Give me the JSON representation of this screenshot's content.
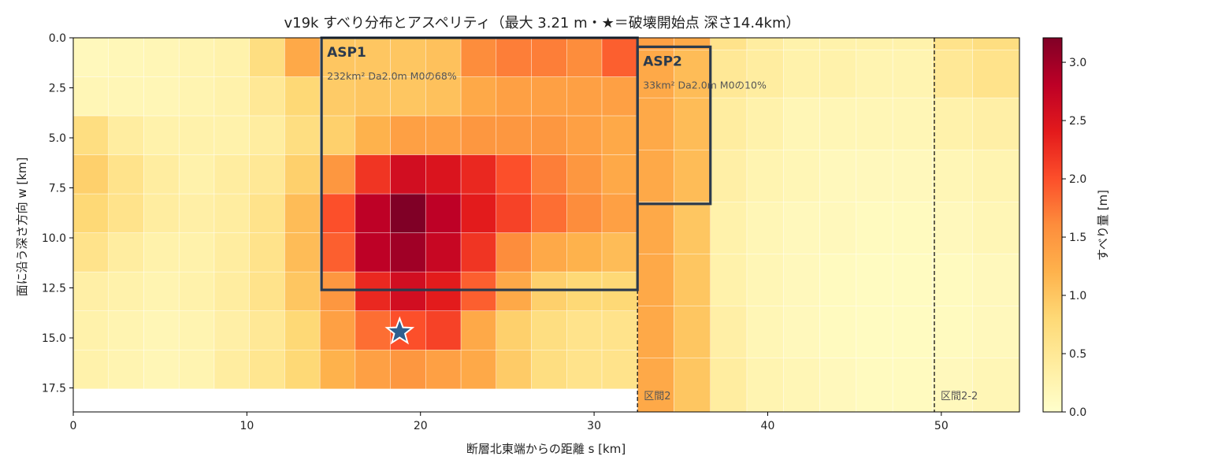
{
  "chart_data": {
    "type": "heatmap",
    "title": "v19k すべり分布とアスペリティ（最大 3.21 m・★＝破壊開始点 深さ14.4km）",
    "xlabel": "断層北東端からの距離 s [km]",
    "ylabel": "面に沿う深さ方向 w [km]",
    "colorbar_label": "すべり量 [m]",
    "xlim": [
      0,
      54.5
    ],
    "ylim": [
      18.7,
      0
    ],
    "xticks": [
      0,
      10,
      20,
      30,
      40,
      50
    ],
    "xtick_labels": [
      "0",
      "10",
      "20",
      "30",
      "40",
      "50"
    ],
    "yticks": [
      0,
      2.5,
      5,
      7.5,
      10,
      12.5,
      15,
      17.5
    ],
    "ytick_labels": [
      "0.0",
      "2.5",
      "5.0",
      "7.5",
      "10.0",
      "12.5",
      "15.0",
      "17.5"
    ],
    "cbar_range": [
      0,
      3.21
    ],
    "cbar_ticks": [
      0,
      0.5,
      1,
      1.5,
      2,
      2.5,
      3
    ],
    "cbar_tick_labels": [
      "0.0",
      "0.5",
      "1.0",
      "1.5",
      "2.0",
      "2.5",
      "3.0"
    ],
    "colormap": "YlOrRd",
    "region1": {
      "x_edges": [
        0,
        2.03,
        4.06,
        6.09,
        8.12,
        10.15,
        12.18,
        14.21,
        16.24,
        18.27,
        20.3,
        22.33,
        24.36,
        26.39,
        28.42,
        30.45,
        32.5
      ],
      "y_edges": [
        0,
        1.95,
        3.9,
        5.85,
        7.8,
        9.75,
        11.7,
        13.65,
        15.6,
        17.55
      ],
      "values": [
        [
          0.15,
          0.18,
          0.2,
          0.25,
          0.3,
          0.7,
          1.3,
          1.0,
          1.0,
          1.0,
          1.05,
          1.6,
          1.7,
          1.7,
          1.6,
          1.9
        ],
        [
          0.2,
          0.2,
          0.2,
          0.25,
          0.3,
          0.5,
          0.8,
          0.95,
          1.0,
          1.0,
          1.05,
          1.3,
          1.4,
          1.4,
          1.4,
          1.4
        ],
        [
          0.7,
          0.4,
          0.3,
          0.3,
          0.3,
          0.4,
          0.7,
          0.9,
          1.2,
          1.4,
          1.4,
          1.5,
          1.5,
          1.5,
          1.4,
          1.3
        ],
        [
          0.9,
          0.6,
          0.4,
          0.3,
          0.4,
          0.5,
          0.9,
          1.5,
          2.2,
          2.6,
          2.5,
          2.3,
          2.0,
          1.7,
          1.5,
          1.3
        ],
        [
          0.8,
          0.6,
          0.4,
          0.35,
          0.4,
          0.6,
          1.1,
          2.0,
          2.8,
          3.21,
          2.8,
          2.4,
          2.1,
          1.8,
          1.6,
          1.4
        ],
        [
          0.6,
          0.4,
          0.3,
          0.3,
          0.4,
          0.6,
          1.1,
          1.9,
          2.8,
          3.0,
          2.7,
          2.2,
          1.6,
          1.3,
          1.2,
          1.1
        ],
        [
          0.35,
          0.3,
          0.25,
          0.3,
          0.4,
          0.6,
          1.0,
          1.5,
          2.3,
          2.6,
          2.4,
          1.9,
          1.3,
          0.9,
          0.8,
          0.8
        ],
        [
          0.3,
          0.25,
          0.2,
          0.25,
          0.35,
          0.5,
          0.8,
          1.4,
          1.8,
          2.0,
          2.1,
          1.3,
          0.9,
          0.7,
          0.6,
          0.6
        ],
        [
          0.3,
          0.25,
          0.2,
          0.25,
          0.4,
          0.55,
          0.8,
          1.2,
          1.4,
          1.5,
          1.4,
          1.3,
          0.95,
          0.7,
          0.6,
          0.6
        ]
      ]
    },
    "region2": {
      "x_edges": [
        32.5,
        34.6,
        36.7,
        38.8,
        40.9,
        43.0,
        45.1,
        47.2,
        49.5,
        51.8,
        54.5
      ],
      "y_edges": [
        0,
        0.6,
        3.0,
        5.6,
        8.2,
        10.8,
        13.4,
        16.0,
        18.7
      ],
      "values": [
        [
          1.4,
          1.3,
          0.6,
          0.4,
          0.3,
          0.3,
          0.3,
          0.3,
          0.6,
          0.7
        ],
        [
          1.3,
          1.1,
          0.5,
          0.4,
          0.3,
          0.3,
          0.25,
          0.25,
          0.5,
          0.6
        ],
        [
          1.3,
          1.1,
          0.4,
          0.3,
          0.2,
          0.2,
          0.2,
          0.2,
          0.3,
          0.35
        ],
        [
          1.3,
          1.1,
          0.35,
          0.25,
          0.2,
          0.15,
          0.15,
          0.15,
          0.2,
          0.25
        ],
        [
          1.3,
          1.0,
          0.3,
          0.2,
          0.15,
          0.15,
          0.12,
          0.12,
          0.15,
          0.2
        ],
        [
          1.3,
          1.0,
          0.3,
          0.2,
          0.15,
          0.12,
          0.1,
          0.1,
          0.12,
          0.15
        ],
        [
          1.3,
          1.0,
          0.35,
          0.2,
          0.15,
          0.12,
          0.1,
          0.1,
          0.12,
          0.15
        ],
        [
          1.3,
          1.0,
          0.4,
          0.25,
          0.2,
          0.15,
          0.12,
          0.12,
          0.15,
          0.2
        ]
      ]
    },
    "asperities": [
      {
        "name": "ASP1",
        "info": "232km² Da2.0m M0の68%",
        "x0": 14.3,
        "x1": 32.5,
        "y0": 0,
        "y1": 12.6
      },
      {
        "name": "ASP2",
        "info": "33km² Da2.0m M0の10%",
        "x0": 32.5,
        "x1": 36.7,
        "y0": 0.45,
        "y1": 8.3
      }
    ],
    "segment_boundaries": [
      {
        "x": 32.5,
        "y0": 12.6,
        "y1": 18.7,
        "label": "区間2"
      },
      {
        "x": 49.6,
        "y0": 0,
        "y1": 18.7,
        "label": "区間2-2"
      }
    ],
    "hypocenter": {
      "s": 18.8,
      "w": 14.7,
      "symbol": "★"
    },
    "colors": {
      "asperity_edge": "#2b3a4d",
      "star_fill": "#2f5f8f",
      "star_edge": "#ffffff"
    }
  }
}
